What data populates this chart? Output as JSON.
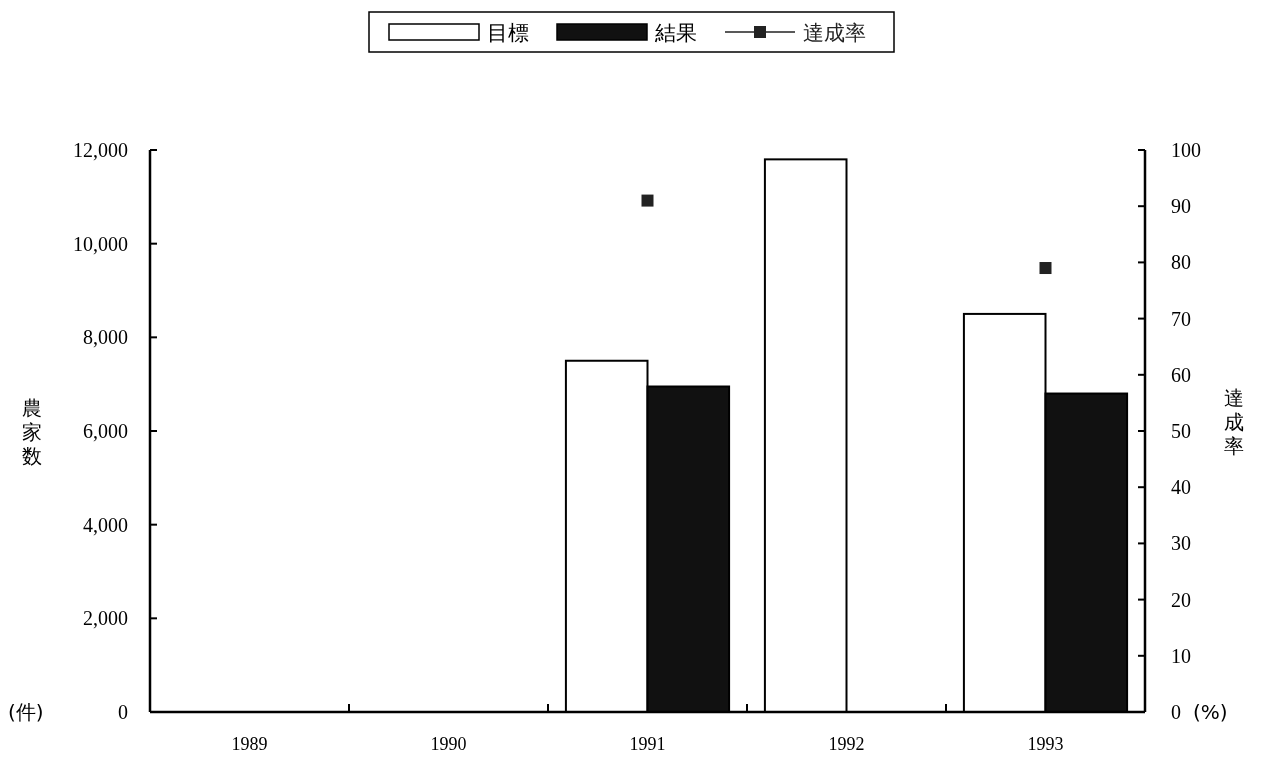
{
  "chart_data": {
    "type": "bar",
    "ylabel": "農家数",
    "y2label": "達成率",
    "categories": [
      "1989",
      "1990",
      "1991",
      "1992",
      "1993"
    ],
    "series": [
      {
        "name": "目標",
        "color": "#ffffff",
        "values": [
          null,
          null,
          7500,
          11800,
          8500
        ]
      },
      {
        "name": "結果",
        "color": "#111111",
        "values": [
          null,
          null,
          6950,
          null,
          6800
        ]
      },
      {
        "name": "達成率",
        "type": "scatter",
        "axis": "y2",
        "color": "#222222",
        "marker": "square",
        "values": [
          null,
          null,
          91,
          null,
          79
        ]
      }
    ],
    "ylim": [
      0,
      12000
    ],
    "yticks": [
      0,
      {
        "value": 2000,
        "label": "2,000"
      },
      {
        "value": 4000,
        "label": "4,000"
      },
      {
        "value": 6000,
        "label": "6,000"
      },
      {
        "value": 8000,
        "label": "8,000"
      },
      {
        "value": 10000,
        "label": "10,000"
      },
      {
        "value": 12000,
        "label": "12,000"
      }
    ],
    "y2lim": [
      0,
      100
    ],
    "y2ticks": [
      0,
      10,
      20,
      30,
      40,
      50,
      60,
      70,
      80,
      90,
      100
    ],
    "annotations": [
      "(件)",
      "(%)"
    ],
    "legend": "top",
    "grid": false
  }
}
